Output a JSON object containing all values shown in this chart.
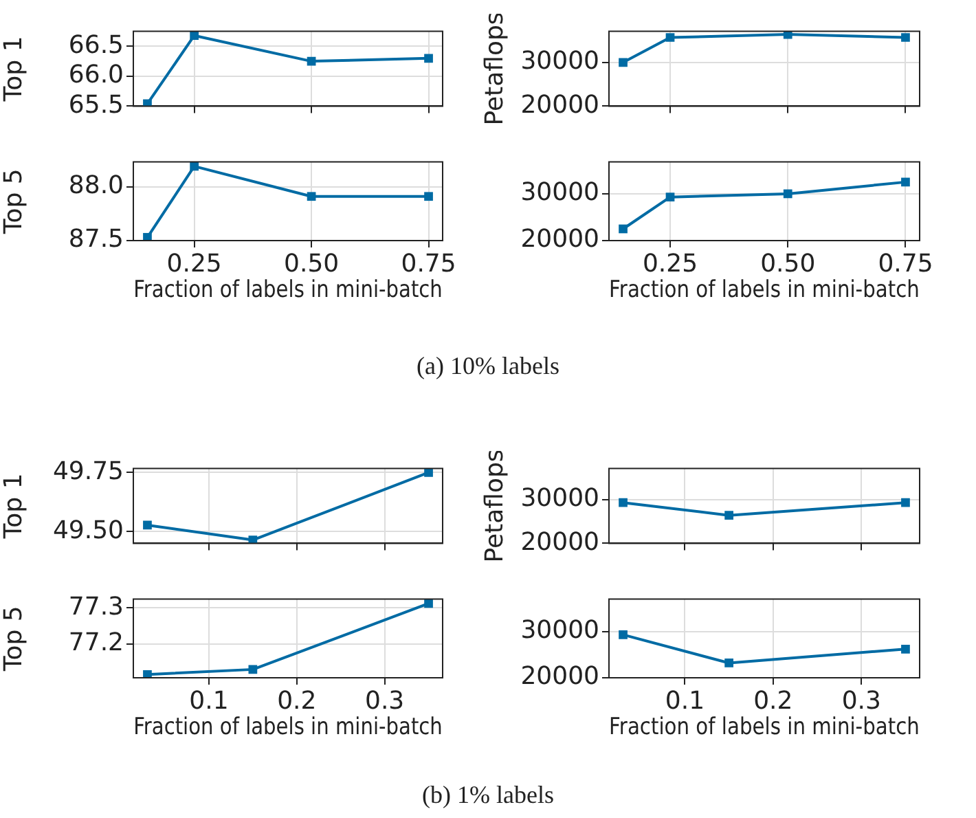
{
  "chart_data": [
    {
      "type": "line",
      "ylabel": "Top 1",
      "x": [
        0.15,
        0.25,
        0.5,
        0.75
      ],
      "xlim": [
        0.12,
        0.78
      ],
      "xticks": [
        0.25,
        0.5,
        0.75
      ],
      "ylim": [
        65.5,
        66.75
      ],
      "yticks": [
        65.5,
        {
          "value": 66,
          "label": "66.0"
        },
        66.5
      ],
      "series": [
        {
          "color": "#006ba4",
          "values": [
            65.54,
            66.68,
            66.25,
            66.3
          ]
        }
      ],
      "grid": true,
      "marker": "square",
      "line_style": "solid",
      "tick_labels": "y"
    },
    {
      "type": "line",
      "ylabel": "Petaflops",
      "x": [
        0.15,
        0.25,
        0.5,
        0.75
      ],
      "xlim": [
        0.12,
        0.78
      ],
      "xticks": [
        0.25,
        0.5,
        0.75
      ],
      "ylim": [
        20000,
        37100
      ],
      "yticks": [
        20000,
        30000
      ],
      "series": [
        {
          "color": "#006ba4",
          "values": [
            30000,
            35700,
            36400,
            35700
          ]
        }
      ],
      "grid": true,
      "marker": "square",
      "line_style": "solid",
      "tick_labels": "y"
    },
    {
      "type": "line",
      "ylabel": "Top 5",
      "xlabel": "Fraction of labels in mini-batch",
      "x": [
        0.15,
        0.25,
        0.5,
        0.75
      ],
      "xlim": [
        0.12,
        0.78
      ],
      "xticks": [
        {
          "value": 0.25,
          "label": "0.25"
        },
        {
          "value": 0.5,
          "label": "0.50"
        },
        {
          "value": 0.75,
          "label": "0.75"
        }
      ],
      "ylim": [
        87.5,
        88.23
      ],
      "yticks": [
        87.5,
        {
          "value": 88,
          "label": "88.0"
        }
      ],
      "series": [
        {
          "color": "#006ba4",
          "values": [
            87.53,
            88.19,
            87.91,
            87.91
          ]
        }
      ],
      "grid": true,
      "marker": "square",
      "line_style": "solid"
    },
    {
      "type": "line",
      "xlabel": "Fraction of labels in mini-batch",
      "x": [
        0.15,
        0.25,
        0.5,
        0.75
      ],
      "xlim": [
        0.12,
        0.78
      ],
      "xticks": [
        {
          "value": 0.25,
          "label": "0.25"
        },
        {
          "value": 0.5,
          "label": "0.50"
        },
        {
          "value": 0.75,
          "label": "0.75"
        }
      ],
      "ylim": [
        20000,
        36800
      ],
      "yticks": [
        20000,
        30000
      ],
      "series": [
        {
          "color": "#006ba4",
          "values": [
            22500,
            29300,
            30000,
            32500
          ]
        }
      ],
      "grid": true,
      "marker": "square",
      "line_style": "solid",
      "annotations": [
        "(a) 10% labels"
      ]
    },
    {
      "type": "line",
      "ylabel": "Top 1",
      "x": [
        0.03,
        0.15,
        0.35
      ],
      "xlim": [
        0.014,
        0.366
      ],
      "xticks": [
        0.1,
        0.2,
        0.3
      ],
      "ylim": [
        49.45,
        49.767
      ],
      "yticks": [
        {
          "value": 49.5,
          "label": "49.50"
        },
        49.75
      ],
      "series": [
        {
          "color": "#006ba4",
          "values": [
            49.527,
            49.464,
            49.75
          ]
        }
      ],
      "grid": true,
      "marker": "square",
      "line_style": "solid",
      "tick_labels": "y"
    },
    {
      "type": "line",
      "ylabel": "Petaflops",
      "x": [
        0.03,
        0.15,
        0.35
      ],
      "xlim": [
        0.014,
        0.366
      ],
      "xticks": [
        0.1,
        0.2,
        0.3
      ],
      "ylim": [
        20000,
        37100
      ],
      "yticks": [
        20000,
        30000
      ],
      "series": [
        {
          "color": "#006ba4",
          "values": [
            29300,
            26400,
            29300
          ]
        }
      ],
      "grid": true,
      "marker": "square",
      "line_style": "solid",
      "tick_labels": "y"
    },
    {
      "type": "line",
      "ylabel": "Top 5",
      "xlabel": "Fraction of labels in mini-batch",
      "x": [
        0.03,
        0.15,
        0.35
      ],
      "xlim": [
        0.014,
        0.366
      ],
      "xticks": [
        0.1,
        0.2,
        0.3
      ],
      "ylim": [
        77.107,
        77.324
      ],
      "yticks": [
        77.2,
        77.3
      ],
      "series": [
        {
          "color": "#006ba4",
          "values": [
            77.116,
            77.13,
            77.312
          ]
        }
      ],
      "grid": true,
      "marker": "square",
      "line_style": "solid"
    },
    {
      "type": "line",
      "xlabel": "Fraction of labels in mini-batch",
      "x": [
        0.03,
        0.15,
        0.35
      ],
      "xlim": [
        0.014,
        0.366
      ],
      "xticks": [
        0.1,
        0.2,
        0.3
      ],
      "ylim": [
        20000,
        37000
      ],
      "yticks": [
        20000,
        30000
      ],
      "series": [
        {
          "color": "#006ba4",
          "values": [
            29300,
            23200,
            26200
          ]
        }
      ],
      "grid": true,
      "marker": "square",
      "line_style": "solid",
      "annotations": [
        "(b) 1% labels"
      ]
    }
  ]
}
